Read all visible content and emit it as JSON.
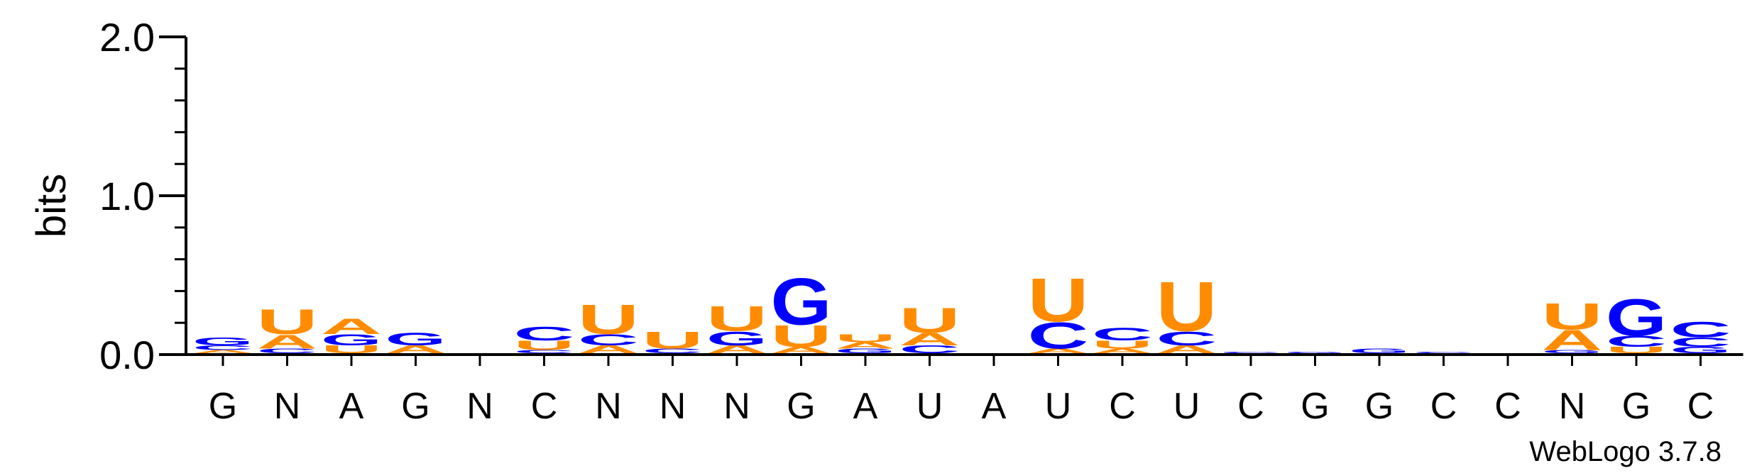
{
  "chart_data": {
    "type": "sequence-logo",
    "ylabel": "bits",
    "ylim": [
      0,
      2.0
    ],
    "yticks": [
      "0.0",
      "1.0",
      "2.0"
    ],
    "xticks": [
      "G",
      "N",
      "A",
      "G",
      "N",
      "C",
      "N",
      "N",
      "N",
      "G",
      "A",
      "U",
      "A",
      "U",
      "C",
      "U",
      "C",
      "G",
      "G",
      "C",
      "C",
      "N",
      "G",
      "C"
    ],
    "colors": {
      "A": "#ff8c00",
      "U": "#ff8c00",
      "G": "#0000ff",
      "C": "#0000ff"
    },
    "positions": [
      [
        {
          "l": "A",
          "h": 0.02
        },
        {
          "l": "C",
          "h": 0.03
        },
        {
          "l": "G",
          "h": 0.05
        }
      ],
      [
        {
          "l": "C",
          "h": 0.03
        },
        {
          "l": "A",
          "h": 0.09
        },
        {
          "l": "U",
          "h": 0.16
        }
      ],
      [
        {
          "l": "U",
          "h": 0.05
        },
        {
          "l": "G",
          "h": 0.07
        },
        {
          "l": "A",
          "h": 0.1
        }
      ],
      [
        {
          "l": "A",
          "h": 0.05
        },
        {
          "l": "G",
          "h": 0.08
        }
      ],
      [],
      [
        {
          "l": "C",
          "h": 0.02
        },
        {
          "l": "U",
          "h": 0.06
        },
        {
          "l": "C",
          "h": 0.09
        }
      ],
      [
        {
          "l": "A",
          "h": 0.05
        },
        {
          "l": "C",
          "h": 0.07
        },
        {
          "l": "U",
          "h": 0.19
        }
      ],
      [
        {
          "l": "C",
          "h": 0.03
        },
        {
          "l": "U",
          "h": 0.11
        }
      ],
      [
        {
          "l": "A",
          "h": 0.05
        },
        {
          "l": "G",
          "h": 0.09
        },
        {
          "l": "U",
          "h": 0.16
        }
      ],
      [
        {
          "l": "A",
          "h": 0.04
        },
        {
          "l": "U",
          "h": 0.14
        },
        {
          "l": "G",
          "h": 0.3
        }
      ],
      [
        {
          "l": "G",
          "h": 0.03
        },
        {
          "l": "A",
          "h": 0.04
        },
        {
          "l": "U",
          "h": 0.05
        }
      ],
      [
        {
          "l": "C",
          "h": 0.05
        },
        {
          "l": "A",
          "h": 0.08
        },
        {
          "l": "U",
          "h": 0.16
        }
      ],
      [],
      [
        {
          "l": "A",
          "h": 0.03
        },
        {
          "l": "C",
          "h": 0.17
        },
        {
          "l": "U",
          "h": 0.28
        }
      ],
      [
        {
          "l": "A",
          "h": 0.03
        },
        {
          "l": "U",
          "h": 0.05
        },
        {
          "l": "C",
          "h": 0.08
        }
      ],
      [
        {
          "l": "A",
          "h": 0.05
        },
        {
          "l": "C",
          "h": 0.09
        },
        {
          "l": "U",
          "h": 0.32
        }
      ],
      [
        {
          "l": "C",
          "h": 0.01
        }
      ],
      [
        {
          "l": "G",
          "h": 0.01
        }
      ],
      [
        {
          "l": "G",
          "h": 0.03
        }
      ],
      [
        {
          "l": "C",
          "h": 0.01
        }
      ],
      [],
      [
        {
          "l": "G",
          "h": 0.02
        },
        {
          "l": "A",
          "h": 0.13
        },
        {
          "l": "U",
          "h": 0.17
        }
      ],
      [
        {
          "l": "U",
          "h": 0.04
        },
        {
          "l": "C",
          "h": 0.07
        },
        {
          "l": "G",
          "h": 0.24
        }
      ],
      [
        {
          "l": "G",
          "h": 0.04
        },
        {
          "l": "C",
          "h": 0.06
        },
        {
          "l": "C",
          "h": 0.1
        }
      ]
    ]
  },
  "footer": {
    "credit": "WebLogo 3.7.8"
  }
}
